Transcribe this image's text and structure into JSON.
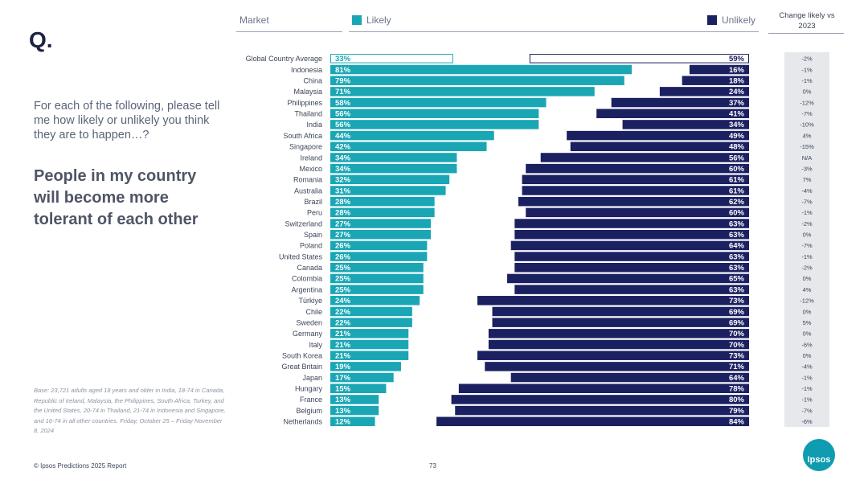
{
  "page": {
    "q_mark": "Q.",
    "intro": "For each of the following, please tell me how likely or unlikely you think they are to happen…?",
    "statement": "People in my country will become more tolerant of each other",
    "base_note": "Base: 23,721 adults aged 18 years and older in India, 18-74 in Canada, Republic of Ireland, Malaysia, the Philippines, South Africa, Turkey, and the United States, 20-74 in Thailand, 21-74 in Indonesia and Singapore, and 16-74 in all other countries. Friday, October 25 – Friday November 8, 2024",
    "footer": "© Ipsos Predictions 2025 Report",
    "page_number": "73",
    "logo_text": "Ipsos"
  },
  "header": {
    "market": "Market",
    "likely": "Likely",
    "unlikely": "Unlikely",
    "change": "Change likely vs 2023"
  },
  "colors": {
    "likely": "#1aa6b4",
    "unlikely": "#1b2061",
    "change_bg": "#e6e8ec",
    "logo": "#0f9bb0"
  },
  "chart_data": {
    "type": "bar",
    "subtype": "diverging-stacked-horizontal",
    "title": "People in my country will become more tolerant of each other",
    "categories": [
      "Global Country Average",
      "Indonesia",
      "China",
      "Malaysia",
      "Philippines",
      "Thailand",
      "India",
      "South Africa",
      "Singapore",
      "Ireland",
      "Mexico",
      "Romania",
      "Australia",
      "Brazil",
      "Peru",
      "Switzerland",
      "Spain",
      "Poland",
      "United States",
      "Canada",
      "Colombia",
      "Argentina",
      "Türkiye",
      "Chile",
      "Sweden",
      "Germany",
      "Italy",
      "South Korea",
      "Great Britain",
      "Japan",
      "Hungary",
      "France",
      "Belgium",
      "Netherlands"
    ],
    "series": [
      {
        "name": "Likely",
        "values": [
          33,
          81,
          79,
          71,
          58,
          56,
          56,
          44,
          42,
          34,
          34,
          32,
          31,
          28,
          28,
          27,
          27,
          26,
          26,
          25,
          25,
          25,
          24,
          22,
          22,
          21,
          21,
          21,
          19,
          17,
          15,
          13,
          13,
          12
        ]
      },
      {
        "name": "Unlikely",
        "values": [
          59,
          16,
          18,
          24,
          37,
          41,
          34,
          49,
          48,
          56,
          60,
          61,
          61,
          62,
          60,
          63,
          63,
          64,
          63,
          63,
          65,
          63,
          73,
          69,
          69,
          70,
          70,
          73,
          71,
          64,
          78,
          80,
          79,
          84
        ]
      }
    ],
    "change_vs_2023": [
      "-2%",
      "-1%",
      "-1%",
      "0%",
      "-12%",
      "-7%",
      "-10%",
      "4%",
      "-15%",
      "N/A",
      "-3%",
      "7%",
      "-4%",
      "-7%",
      "-1%",
      "-2%",
      "0%",
      "-7%",
      "-1%",
      "-2%",
      "0%",
      "4%",
      "-12%",
      "0%",
      "5%",
      "0%",
      "-6%",
      "0%",
      "-4%",
      "-1%",
      "-1%",
      "-1%",
      "-7%",
      "-6%"
    ],
    "value_suffix": "%",
    "xlim": [
      0,
      100
    ]
  }
}
